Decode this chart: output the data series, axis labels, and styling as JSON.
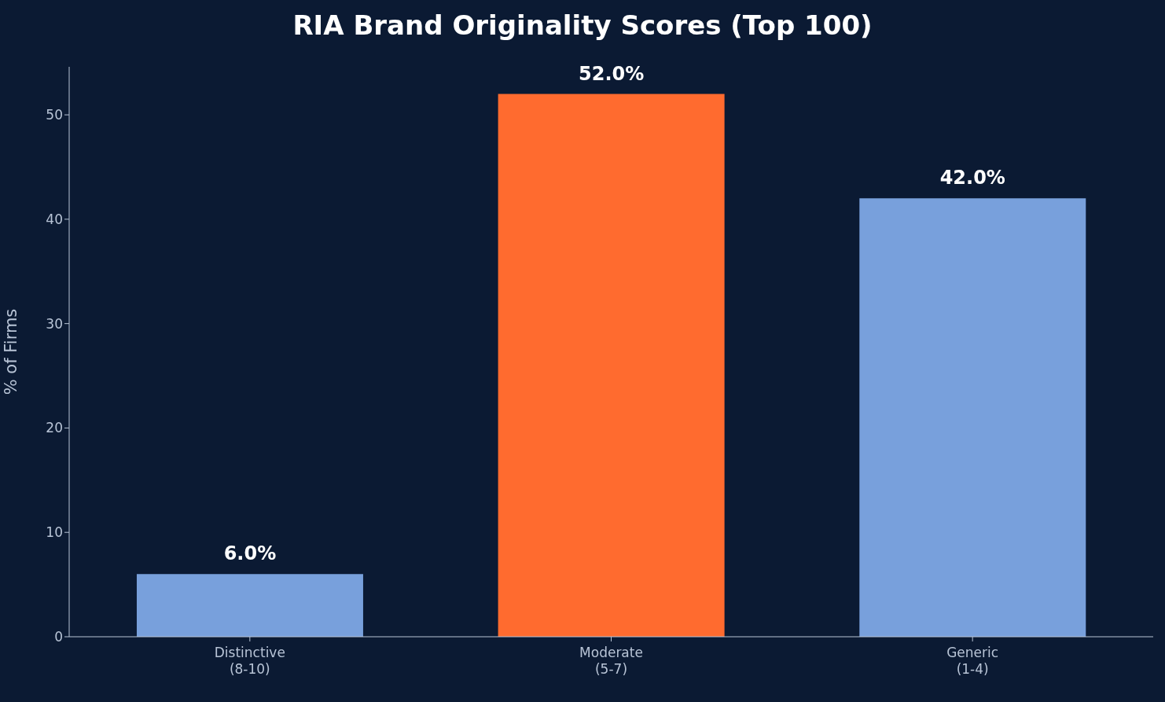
{
  "chart_data": {
    "type": "bar",
    "title": "RIA Brand Originality Scores (Top 100)",
    "ylabel": "% of Firms",
    "categories": [
      "Distinctive\n(8-10)",
      "Moderate\n(5-7)",
      "Generic\n(1-4)"
    ],
    "values": [
      6,
      52,
      42
    ],
    "colors": [
      "#78a0dc",
      "#ff6b2f",
      "#78a0dc"
    ],
    "value_labels": [
      "6.0%",
      "52.0%",
      "42.0%"
    ],
    "ylim": [
      0,
      54.6
    ],
    "yticks": [
      0,
      10,
      20,
      30,
      40,
      50
    ],
    "grid": false,
    "legend": false
  }
}
